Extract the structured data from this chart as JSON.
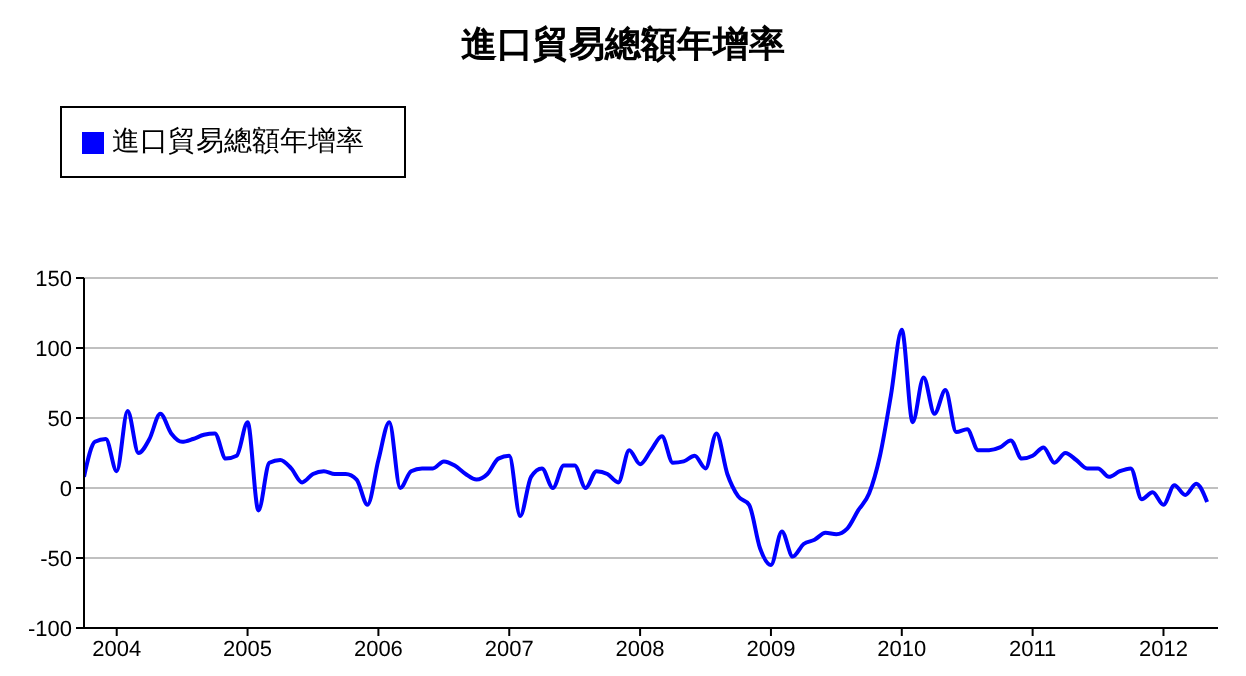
{
  "chart_data": {
    "type": "line",
    "title": "進口貿易總額年增率",
    "x": [
      "2003-10",
      "2003-11",
      "2003-12",
      "2004-01",
      "2004-02",
      "2004-03",
      "2004-04",
      "2004-05",
      "2004-06",
      "2004-07",
      "2004-08",
      "2004-09",
      "2004-10",
      "2004-11",
      "2004-12",
      "2005-01",
      "2005-02",
      "2005-03",
      "2005-04",
      "2005-05",
      "2005-06",
      "2005-07",
      "2005-08",
      "2005-09",
      "2005-10",
      "2005-11",
      "2005-12",
      "2006-01",
      "2006-02",
      "2006-03",
      "2006-04",
      "2006-05",
      "2006-06",
      "2006-07",
      "2006-08",
      "2006-09",
      "2006-10",
      "2006-11",
      "2006-12",
      "2007-01",
      "2007-02",
      "2007-03",
      "2007-04",
      "2007-05",
      "2007-06",
      "2007-07",
      "2007-08",
      "2007-09",
      "2007-10",
      "2007-11",
      "2007-12",
      "2008-01",
      "2008-02",
      "2008-03",
      "2008-04",
      "2008-05",
      "2008-06",
      "2008-07",
      "2008-08",
      "2008-09",
      "2008-10",
      "2008-11",
      "2008-12",
      "2009-01",
      "2009-02",
      "2009-03",
      "2009-04",
      "2009-05",
      "2009-06",
      "2009-07",
      "2009-08",
      "2009-09",
      "2009-10",
      "2009-11",
      "2009-12",
      "2010-01",
      "2010-02",
      "2010-03",
      "2010-04",
      "2010-05",
      "2010-06",
      "2010-07",
      "2010-08",
      "2010-09",
      "2010-10",
      "2010-11",
      "2010-12",
      "2011-01",
      "2011-02",
      "2011-03",
      "2011-04",
      "2011-05",
      "2011-06",
      "2011-07",
      "2011-08",
      "2011-09",
      "2011-10",
      "2011-11",
      "2011-12",
      "2012-01",
      "2012-02",
      "2012-03",
      "2012-04",
      "2012-05"
    ],
    "series": [
      {
        "name": "進口貿易總額年增率",
        "color": "#0000ff",
        "values": [
          8,
          33,
          35,
          12,
          55,
          25,
          35,
          53,
          39,
          33,
          35,
          38,
          39,
          21,
          23,
          47,
          -16,
          18,
          20,
          14,
          4,
          10,
          12,
          10,
          10,
          6,
          -12,
          20,
          47,
          0,
          12,
          14,
          14,
          19,
          16,
          10,
          6,
          10,
          21,
          23,
          -20,
          8,
          14,
          0,
          16,
          16,
          0,
          12,
          10,
          4,
          27,
          17,
          27,
          37,
          18,
          19,
          23,
          14,
          39,
          10,
          -6,
          -12,
          -43,
          -55,
          -31,
          -49,
          -40,
          -37,
          -32,
          -33,
          -29,
          -16,
          -4,
          23,
          66,
          113,
          47,
          79,
          53,
          70,
          40,
          42,
          27,
          27,
          29,
          34,
          21,
          23,
          29,
          18,
          25,
          20,
          14,
          14,
          8,
          12,
          14,
          -8,
          -3,
          -12,
          2,
          -5,
          3,
          -10
        ]
      }
    ],
    "xlim": [
      "2003-10",
      "2012-06"
    ],
    "xticks": [
      "2004",
      "2005",
      "2006",
      "2007",
      "2008",
      "2009",
      "2010",
      "2011",
      "2012"
    ],
    "ylim": [
      -100,
      150
    ],
    "yticks": [
      -100,
      -50,
      0,
      50,
      100,
      150
    ],
    "grid": "y",
    "legend": "top left"
  }
}
